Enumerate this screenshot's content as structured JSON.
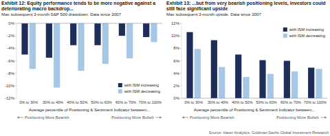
{
  "chart_data": [
    {
      "type": "bar",
      "title": "Exhibit 12: Equity performance tends to be more negative against a deteriorating macro backdrop...",
      "subtitle": "Max subsequent 3-month S&P 500 drawdown. Data since 2007",
      "x_label": "Average percentile of Positioning & Sentiment Indicator between...",
      "annotations": [
        "Positioning More Bearish",
        "Positioning More Bullish"
      ],
      "categories": [
        "0% to 30%",
        "30% to 40%",
        "40% to 50%",
        "50% to 60%",
        "60% to 70%",
        "70% to 100%"
      ],
      "series": [
        {
          "name": "with ISM increasing",
          "color": "#1f2d5a",
          "values": [
            -5.0,
            -5.5,
            -3.5,
            -3.5,
            -2.0,
            -2.2
          ]
        },
        {
          "name": "with ISM decreasing",
          "color": "#a7c7e7",
          "values": [
            -7.3,
            -10.3,
            -7.6,
            -6.5,
            -5.6,
            -3.0
          ]
        }
      ],
      "ylim": [
        -12,
        0
      ],
      "yticks": [
        {
          "value": 0,
          "label": "0%"
        },
        {
          "value": -2,
          "label": "-2%"
        },
        {
          "value": -4,
          "label": "-4%"
        },
        {
          "value": -6,
          "label": "-6%"
        },
        {
          "value": -8,
          "label": "-8%"
        },
        {
          "value": -10,
          "label": "-10%"
        },
        {
          "value": -12,
          "label": "-12%"
        }
      ],
      "grid": false,
      "legend": "lower right"
    },
    {
      "type": "bar",
      "title": "Exhibit 13: ...but from very bearish positioning levels, investors could still face significant upside",
      "subtitle": "Max subsequent 3-month upside. Data since 2007",
      "x_label": "Average percentile of Positioning & Sentiment Indicator between...",
      "annotations": [
        "Positioning More Bearish",
        "Positioning More Bullish"
      ],
      "categories": [
        "0% to 30%",
        "30% to 40%",
        "40% to 50%",
        "50% to 60%",
        "60% to 70%",
        "70% to 100%"
      ],
      "series": [
        {
          "name": "with ISM increasing",
          "color": "#1f2d5a",
          "values": [
            10.6,
            9.3,
            7.0,
            6.1,
            6.0,
            4.9
          ]
        },
        {
          "name": "with ISM decreasing",
          "color": "#a7c7e7",
          "values": [
            7.9,
            5.0,
            3.4,
            3.9,
            4.3,
            4.7
          ]
        }
      ],
      "ylim": [
        0,
        12
      ],
      "yticks": [
        {
          "value": 0,
          "label": "0%"
        },
        {
          "value": 2,
          "label": "2%"
        },
        {
          "value": 4,
          "label": "4%"
        },
        {
          "value": 6,
          "label": "6%"
        },
        {
          "value": 8,
          "label": "8%"
        },
        {
          "value": 10,
          "label": "10%"
        },
        {
          "value": 12,
          "label": "12%"
        }
      ],
      "grid": false,
      "legend": "upper right"
    }
  ],
  "source": "Source: Haver Analytics, Goldman Sachs Global Investment Research"
}
